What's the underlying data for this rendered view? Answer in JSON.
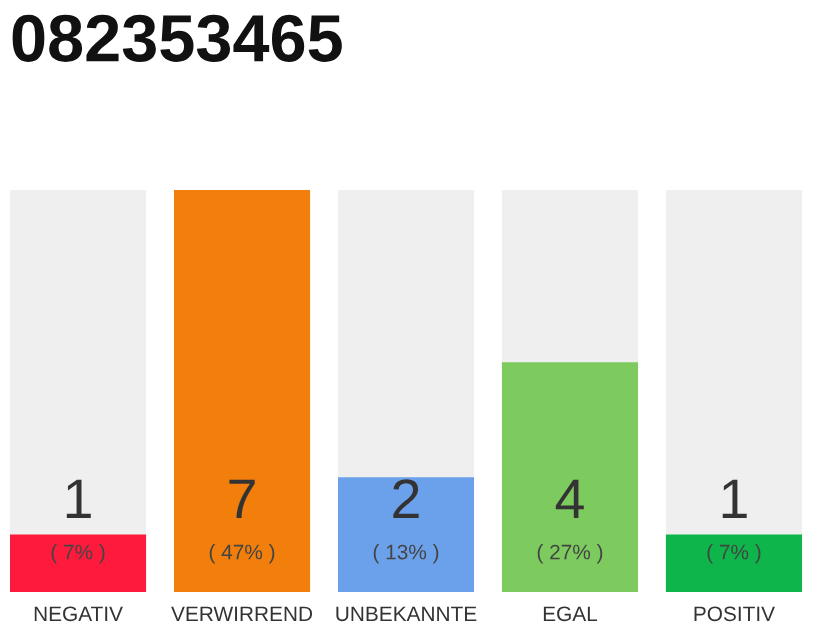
{
  "chart_data": {
    "type": "bar",
    "title": "082353465",
    "categories": [
      "NEGATIV",
      "VERWIRREND",
      "UNBEKANNTE",
      "EGAL",
      "POSITIV"
    ],
    "values": [
      1,
      7,
      2,
      4,
      1
    ],
    "colors": [
      "#fe1a3c",
      "#f27e0c",
      "#6ba1eb",
      "#7dca5e",
      "#0db54a"
    ],
    "data_labels": true,
    "annotations": [
      "( 7% )",
      "( 47% )",
      "( 13% )",
      "( 27% )",
      "( 7% )"
    ],
    "grid": false,
    "legend": false
  }
}
